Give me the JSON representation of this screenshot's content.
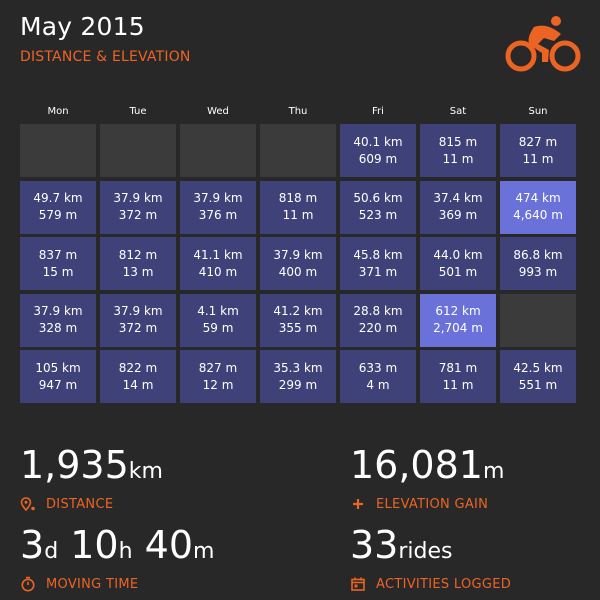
{
  "header": {
    "title": "May 2015",
    "subtitle": "DISTANCE & ELEVATION",
    "logo_icon": "cyclist-icon",
    "accent_color": "#ec6424"
  },
  "calendar": {
    "weekdays": [
      "Mon",
      "Tue",
      "Wed",
      "Thu",
      "Fri",
      "Sat",
      "Sun"
    ],
    "weeks": [
      [
        null,
        null,
        null,
        null,
        {
          "distance": "40.1 km",
          "elevation": "609 m"
        },
        {
          "distance": "815 m",
          "elevation": "11 m"
        },
        {
          "distance": "827 m",
          "elevation": "11 m"
        }
      ],
      [
        {
          "distance": "49.7 km",
          "elevation": "579 m"
        },
        {
          "distance": "37.9 km",
          "elevation": "372 m"
        },
        {
          "distance": "37.9 km",
          "elevation": "376 m"
        },
        {
          "distance": "818 m",
          "elevation": "11 m"
        },
        {
          "distance": "50.6 km",
          "elevation": "523 m"
        },
        {
          "distance": "37.4 km",
          "elevation": "369 m"
        },
        {
          "distance": "474 km",
          "elevation": "4,640 m",
          "highlight": true
        }
      ],
      [
        {
          "distance": "837 m",
          "elevation": "15 m"
        },
        {
          "distance": "812 m",
          "elevation": "13 m"
        },
        {
          "distance": "41.1 km",
          "elevation": "410 m"
        },
        {
          "distance": "37.9 km",
          "elevation": "400 m"
        },
        {
          "distance": "45.8 km",
          "elevation": "371 m"
        },
        {
          "distance": "44.0 km",
          "elevation": "501 m"
        },
        {
          "distance": "86.8 km",
          "elevation": "993 m"
        }
      ],
      [
        {
          "distance": "37.9 km",
          "elevation": "328 m"
        },
        {
          "distance": "37.9 km",
          "elevation": "372 m"
        },
        {
          "distance": "4.1 km",
          "elevation": "59 m"
        },
        {
          "distance": "41.2 km",
          "elevation": "355 m"
        },
        {
          "distance": "28.8 km",
          "elevation": "220 m"
        },
        {
          "distance": "612 km",
          "elevation": "2,704 m",
          "highlight": true
        },
        null
      ],
      [
        {
          "distance": "105 km",
          "elevation": "947 m"
        },
        {
          "distance": "822 m",
          "elevation": "14 m"
        },
        {
          "distance": "827 m",
          "elevation": "12 m"
        },
        {
          "distance": "35.3 km",
          "elevation": "299 m"
        },
        {
          "distance": "633 m",
          "elevation": "4 m"
        },
        {
          "distance": "781 m",
          "elevation": "11 m"
        },
        {
          "distance": "42.5 km",
          "elevation": "551 m"
        }
      ]
    ],
    "colors": {
      "empty": "#3b3b3b",
      "active": "#3e4278",
      "highlight": "#6a71d8"
    }
  },
  "stats": {
    "distance": {
      "value": "1,935",
      "unit": "km",
      "label": "DISTANCE",
      "icon": "map-pin-icon"
    },
    "elevation": {
      "value": "16,081",
      "unit": "m",
      "label": "ELEVATION GAIN",
      "icon": "plus-icon"
    },
    "moving_time": {
      "days": "3",
      "days_unit": "d",
      "hours": "10",
      "hours_unit": "h",
      "minutes": "40",
      "minutes_unit": "m",
      "label": "MOVING TIME",
      "icon": "stopwatch-icon"
    },
    "activities": {
      "value": "33",
      "unit": "rides",
      "label": "ACTIVITIES LOGGED",
      "icon": "calendar-icon"
    }
  }
}
